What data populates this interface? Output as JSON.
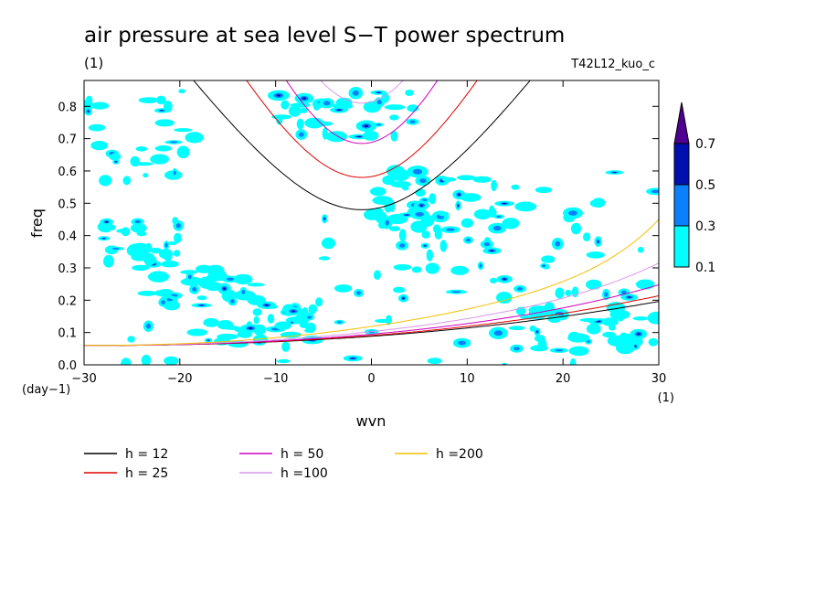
{
  "chart_data": {
    "type": "line",
    "title": "air pressure at sea level S−T power spectrum",
    "subtitle": "(1)",
    "run_label": "T42L12_kuo_c",
    "xlabel": "wvn",
    "ylabel": "freq",
    "x_unit": "(1)",
    "y_unit": "(day−1)",
    "xlim": [
      -30,
      30
    ],
    "ylim": [
      0,
      0.88
    ],
    "x_ticks": [
      "−30",
      "−20",
      "−10",
      "0",
      "10",
      "20",
      "30"
    ],
    "y_ticks": [
      "0.0",
      "0.1",
      "0.2",
      "0.3",
      "0.4",
      "0.5",
      "0.6",
      "0.7",
      "0.8"
    ],
    "grid": false,
    "legend_position": "bottom",
    "series": [
      {
        "name": "h = 12",
        "color": "#000000"
      },
      {
        "name": "h = 25",
        "color": "#e00000"
      },
      {
        "name": "h = 50",
        "color": "#d000c0"
      },
      {
        "name": "h =100",
        "color": "#d898e8"
      },
      {
        "name": "h =200",
        "color": "#f0c000"
      }
    ],
    "colorbar": {
      "levels": [
        "0.1",
        "0.3",
        "0.5",
        "0.7"
      ],
      "colors": [
        "#00ffff",
        "#0a80ff",
        "#0010b0",
        "#500090"
      ]
    }
  }
}
